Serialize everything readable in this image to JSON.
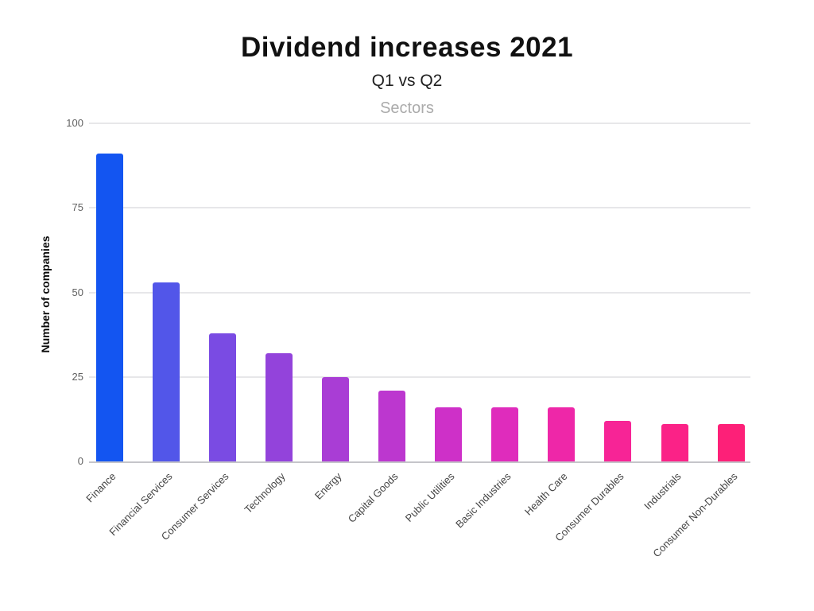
{
  "chart_data": {
    "type": "bar",
    "title": "Dividend increases 2021",
    "subtitle": "Q1 vs Q2",
    "xlabel": "Sectors",
    "ylabel": "Number of companies",
    "ylim": [
      0,
      100
    ],
    "yticks": [
      0,
      25,
      50,
      75,
      100
    ],
    "grid": "horizontal",
    "legend": "none",
    "categories": [
      "Finance",
      "Financial Services",
      "Consumer Services",
      "Technology",
      "Energy",
      "Capital Goods",
      "Public Utilities",
      "Basic Industries",
      "Health Care",
      "Consumer Durables",
      "Industrials",
      "Consumer Non-Durables"
    ],
    "values": [
      91,
      53,
      38,
      32,
      25,
      21,
      16,
      16,
      16,
      12,
      11,
      11
    ],
    "bar_colors": [
      "#1355F1",
      "#5256E9",
      "#7A4BE3",
      "#9343DB",
      "#A93DD5",
      "#BC37CF",
      "#CE30C8",
      "#DF2CBC",
      "#EE27A8",
      "#F72496",
      "#FB2287",
      "#FD2078"
    ],
    "colors": {
      "title": "#111111",
      "subtitle": "#1f1f1f",
      "x_axis_title": "#ababab",
      "y_tick_label": "#616161",
      "category_label": "#454545",
      "gridline": "#e7e7e9",
      "baseline": "#c5c5ca",
      "background": "#ffffff"
    }
  }
}
